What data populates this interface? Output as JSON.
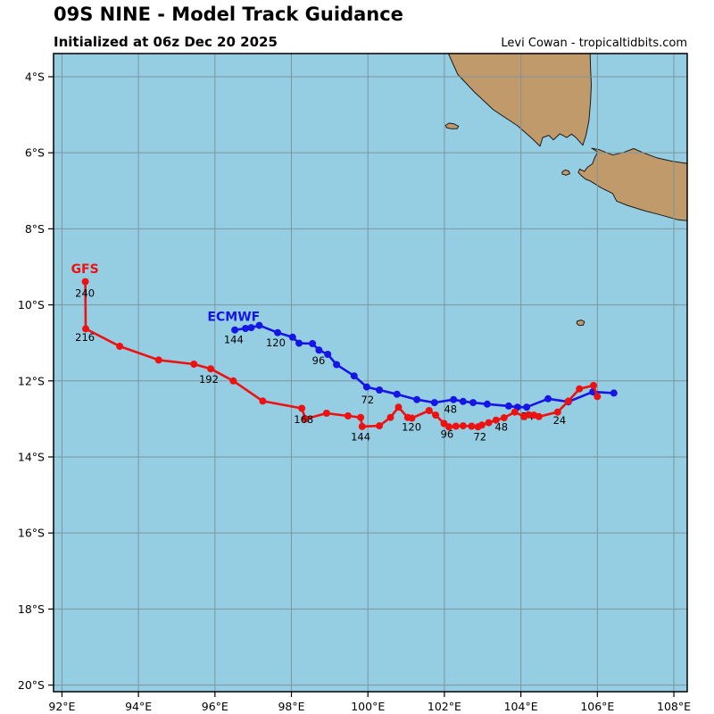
{
  "header": {
    "title": "09S NINE - Model Track Guidance",
    "subtitle": "Initialized at 06z Dec 20 2025",
    "credit": "Levi Cowan - tropicaltidbits.com"
  },
  "axes": {
    "x_ticks": [
      {
        "lon": 92,
        "label": "92°E"
      },
      {
        "lon": 94,
        "label": "94°E"
      },
      {
        "lon": 96,
        "label": "96°E"
      },
      {
        "lon": 98,
        "label": "98°E"
      },
      {
        "lon": 100,
        "label": "100°E"
      },
      {
        "lon": 102,
        "label": "102°E"
      },
      {
        "lon": 104,
        "label": "104°E"
      },
      {
        "lon": 106,
        "label": "106°E"
      },
      {
        "lon": 108,
        "label": "108°E"
      }
    ],
    "y_ticks": [
      {
        "lat": 4,
        "label": "4°S"
      },
      {
        "lat": 6,
        "label": "6°S"
      },
      {
        "lat": 8,
        "label": "8°S"
      },
      {
        "lat": 10,
        "label": "10°S"
      },
      {
        "lat": 12,
        "label": "12°S"
      },
      {
        "lat": 14,
        "label": "14°S"
      },
      {
        "lat": 16,
        "label": "16°S"
      },
      {
        "lat": 18,
        "label": "18°S"
      },
      {
        "lat": 20,
        "label": "20°S"
      }
    ]
  },
  "map": {
    "ocean_color": "#95cee3",
    "land_color": "#c19a6b",
    "coast_color": "#1a1a1a",
    "grid_color": "#7f949e",
    "border_color": "#000000",
    "land": [
      {
        "name": "sumatra",
        "points": [
          [
            102.1,
            3.0
          ],
          [
            102.1,
            3.38
          ],
          [
            102.35,
            3.94
          ],
          [
            102.78,
            4.4
          ],
          [
            103.28,
            4.87
          ],
          [
            103.9,
            5.28
          ],
          [
            104.28,
            5.61
          ],
          [
            104.5,
            5.83
          ],
          [
            104.57,
            5.6
          ],
          [
            104.73,
            5.54
          ],
          [
            104.85,
            5.66
          ],
          [
            105.02,
            5.5
          ],
          [
            105.2,
            5.6
          ],
          [
            105.32,
            5.51
          ],
          [
            105.42,
            5.58
          ],
          [
            105.62,
            5.8
          ],
          [
            105.7,
            5.55
          ],
          [
            105.78,
            5.15
          ],
          [
            105.82,
            4.67
          ],
          [
            105.84,
            4.21
          ],
          [
            105.82,
            3.74
          ],
          [
            105.8,
            3.0
          ]
        ]
      },
      {
        "name": "java",
        "points": [
          [
            105.85,
            5.88
          ],
          [
            106.05,
            5.92
          ],
          [
            106.4,
            6.06
          ],
          [
            106.68,
            5.99
          ],
          [
            106.95,
            5.89
          ],
          [
            107.2,
            6.0
          ],
          [
            107.55,
            6.13
          ],
          [
            107.95,
            6.22
          ],
          [
            108.6,
            6.32
          ],
          [
            108.6,
            7.81
          ],
          [
            108.1,
            7.76
          ],
          [
            107.6,
            7.62
          ],
          [
            107.25,
            7.53
          ],
          [
            106.8,
            7.39
          ],
          [
            106.5,
            7.27
          ],
          [
            106.4,
            7.07
          ],
          [
            106.1,
            6.92
          ],
          [
            105.81,
            6.74
          ],
          [
            105.7,
            6.7
          ],
          [
            105.58,
            6.6
          ],
          [
            105.5,
            6.52
          ],
          [
            105.54,
            6.43
          ],
          [
            105.66,
            6.49
          ],
          [
            105.74,
            6.38
          ],
          [
            105.87,
            6.29
          ],
          [
            105.93,
            6.13
          ],
          [
            106.01,
            5.98
          ]
        ]
      },
      {
        "name": "enggano-island",
        "points": [
          [
            102.03,
            5.28
          ],
          [
            102.12,
            5.22
          ],
          [
            102.25,
            5.24
          ],
          [
            102.37,
            5.3
          ],
          [
            102.33,
            5.37
          ],
          [
            102.18,
            5.37
          ],
          [
            102.06,
            5.34
          ]
        ]
      },
      {
        "name": "panaitan-island",
        "points": [
          [
            105.08,
            6.5
          ],
          [
            105.16,
            6.45
          ],
          [
            105.25,
            6.48
          ],
          [
            105.28,
            6.55
          ],
          [
            105.18,
            6.59
          ],
          [
            105.08,
            6.56
          ]
        ]
      },
      {
        "name": "christmas-island",
        "points": [
          [
            105.47,
            10.43
          ],
          [
            105.57,
            10.4
          ],
          [
            105.66,
            10.44
          ],
          [
            105.63,
            10.53
          ],
          [
            105.52,
            10.54
          ],
          [
            105.46,
            10.49
          ]
        ]
      }
    ]
  },
  "chart_data": {
    "type": "line",
    "title": "09S NINE - Model Track Guidance",
    "xlabel": "Longitude (°E)",
    "ylabel": "Latitude (°S)",
    "xlim": [
      91.78,
      108.35
    ],
    "ylim": [
      20.17,
      3.39
    ],
    "grid": true,
    "tracks": [
      {
        "name": "ECMWF",
        "color": "#1515e6",
        "name_label": {
          "lon": 96.49,
          "lat": 10.3
        },
        "points": [
          [
            106.43,
            12.32
          ],
          [
            105.88,
            12.29
          ],
          [
            105.24,
            12.55
          ],
          [
            104.71,
            12.47
          ],
          [
            104.15,
            12.69
          ],
          [
            103.91,
            12.69
          ],
          [
            103.68,
            12.66
          ],
          [
            103.12,
            12.61
          ],
          [
            102.75,
            12.57
          ],
          [
            102.49,
            12.54
          ],
          [
            102.24,
            12.49
          ],
          [
            101.74,
            12.57
          ],
          [
            101.28,
            12.49
          ],
          [
            100.76,
            12.35
          ],
          [
            100.3,
            12.24
          ],
          [
            99.97,
            12.16
          ],
          [
            99.64,
            11.87
          ],
          [
            99.18,
            11.57
          ],
          [
            98.95,
            11.3
          ],
          [
            98.72,
            11.19
          ],
          [
            98.55,
            11.02
          ],
          [
            98.2,
            11.01
          ],
          [
            98.03,
            10.85
          ],
          [
            97.64,
            10.73
          ],
          [
            97.16,
            10.54
          ],
          [
            96.95,
            10.6
          ],
          [
            96.8,
            10.62
          ],
          [
            96.52,
            10.66
          ]
        ],
        "hour_labels": [
          {
            "hour": "24",
            "lon": 104.17,
            "lat": 12.93
          },
          {
            "hour": "48",
            "lon": 102.16,
            "lat": 12.74
          },
          {
            "hour": "72",
            "lon": 99.99,
            "lat": 12.5
          },
          {
            "hour": "96",
            "lon": 98.71,
            "lat": 11.47
          },
          {
            "hour": "120",
            "lon": 97.59,
            "lat": 11.0
          },
          {
            "hour": "144",
            "lon": 96.49,
            "lat": 10.91
          }
        ]
      },
      {
        "name": "GFS",
        "color": "#ee1111",
        "name_label": {
          "lon": 92.6,
          "lat": 9.05
        },
        "points": [
          [
            106.0,
            12.41
          ],
          [
            105.9,
            12.12
          ],
          [
            105.53,
            12.21
          ],
          [
            105.24,
            12.53
          ],
          [
            104.96,
            12.82
          ],
          [
            104.47,
            12.94
          ],
          [
            104.34,
            12.9
          ],
          [
            104.2,
            12.89
          ],
          [
            104.08,
            12.94
          ],
          [
            103.84,
            12.82
          ],
          [
            103.56,
            12.97
          ],
          [
            103.35,
            13.03
          ],
          [
            103.16,
            13.1
          ],
          [
            102.98,
            13.16
          ],
          [
            102.88,
            13.21
          ],
          [
            102.71,
            13.19
          ],
          [
            102.49,
            13.18
          ],
          [
            102.3,
            13.19
          ],
          [
            102.12,
            13.21
          ],
          [
            101.99,
            13.12
          ],
          [
            101.77,
            12.9
          ],
          [
            101.6,
            12.78
          ],
          [
            101.15,
            12.98
          ],
          [
            101.04,
            12.96
          ],
          [
            100.8,
            12.69
          ],
          [
            100.59,
            12.96
          ],
          [
            100.3,
            13.18
          ],
          [
            99.85,
            13.2
          ],
          [
            99.81,
            12.96
          ],
          [
            99.48,
            12.92
          ],
          [
            98.92,
            12.85
          ],
          [
            98.37,
            13.0
          ],
          [
            98.27,
            12.72
          ],
          [
            97.25,
            12.53
          ],
          [
            96.48,
            12.0
          ],
          [
            95.89,
            11.68
          ],
          [
            95.45,
            11.56
          ],
          [
            94.53,
            11.45
          ],
          [
            93.51,
            11.09
          ],
          [
            92.62,
            10.63
          ],
          [
            92.61,
            9.39
          ]
        ],
        "hour_labels": [
          {
            "hour": "24",
            "lon": 105.01,
            "lat": 13.04
          },
          {
            "hour": "48",
            "lon": 103.49,
            "lat": 13.21
          },
          {
            "hour": "72",
            "lon": 102.93,
            "lat": 13.47
          },
          {
            "hour": "96",
            "lon": 102.07,
            "lat": 13.4
          },
          {
            "hour": "120",
            "lon": 101.14,
            "lat": 13.21
          },
          {
            "hour": "144",
            "lon": 99.81,
            "lat": 13.47
          },
          {
            "hour": "168",
            "lon": 98.32,
            "lat": 13.02
          },
          {
            "hour": "192",
            "lon": 95.84,
            "lat": 11.96
          },
          {
            "hour": "216",
            "lon": 92.6,
            "lat": 10.86
          },
          {
            "hour": "240",
            "lon": 92.6,
            "lat": 9.69
          }
        ]
      }
    ]
  }
}
